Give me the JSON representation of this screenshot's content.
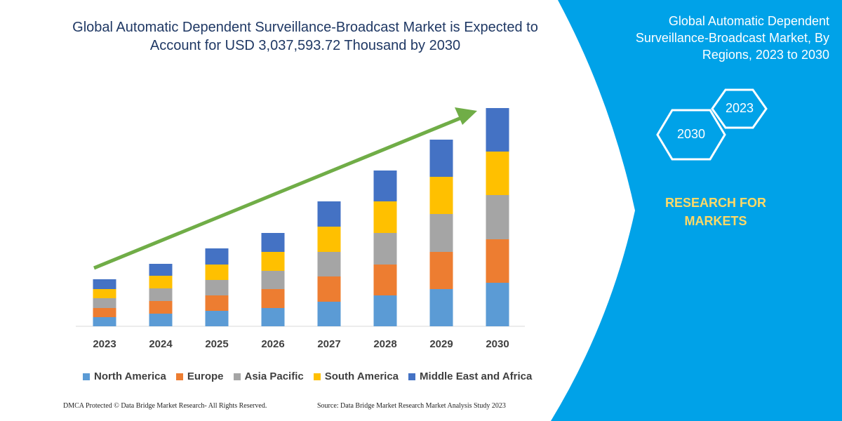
{
  "chart_data": {
    "type": "bar",
    "stacked": true,
    "title": "Global Automatic Dependent Surveillance-Broadcast Market is Expected to Account for USD 3,037,593.72 Thousand by 2030",
    "categories": [
      "2023",
      "2024",
      "2025",
      "2026",
      "2027",
      "2028",
      "2029",
      "2030"
    ],
    "series": [
      {
        "name": "North America",
        "color": "#5b9bd5",
        "values": [
          13,
          18,
          22,
          26,
          35,
          44,
          53,
          62
        ]
      },
      {
        "name": "Europe",
        "color": "#ed7d31",
        "values": [
          13,
          18,
          22,
          27,
          36,
          44,
          53,
          62
        ]
      },
      {
        "name": "Asia Pacific",
        "color": "#a5a5a5",
        "values": [
          14,
          18,
          22,
          26,
          35,
          45,
          54,
          63
        ]
      },
      {
        "name": "South America",
        "color": "#ffc000",
        "values": [
          13,
          18,
          22,
          27,
          36,
          45,
          53,
          62
        ]
      },
      {
        "name": "Middle East and Africa",
        "color": "#4472c4",
        "values": [
          14,
          17,
          23,
          27,
          36,
          44,
          53,
          62
        ]
      }
    ],
    "trend_arrow": {
      "color": "#70ad47",
      "direction": "up-right"
    },
    "legend_position": "bottom",
    "grid": false
  },
  "footer": {
    "left": "DMCA Protected © Data Bridge Market Research-  All Rights Reserved.",
    "right": "Source: Data Bridge Market Research  Market Analysis Study 2023"
  },
  "side_panel": {
    "bg_color": "#00a2e8",
    "title": "Global Automatic Dependent Surveillance-Broadcast Market, By Regions, 2023 to 2030",
    "hex_2023": "2023",
    "hex_2030": "2030",
    "brand_line1": "RESEARCH FOR",
    "brand_line2": "MARKETS"
  }
}
